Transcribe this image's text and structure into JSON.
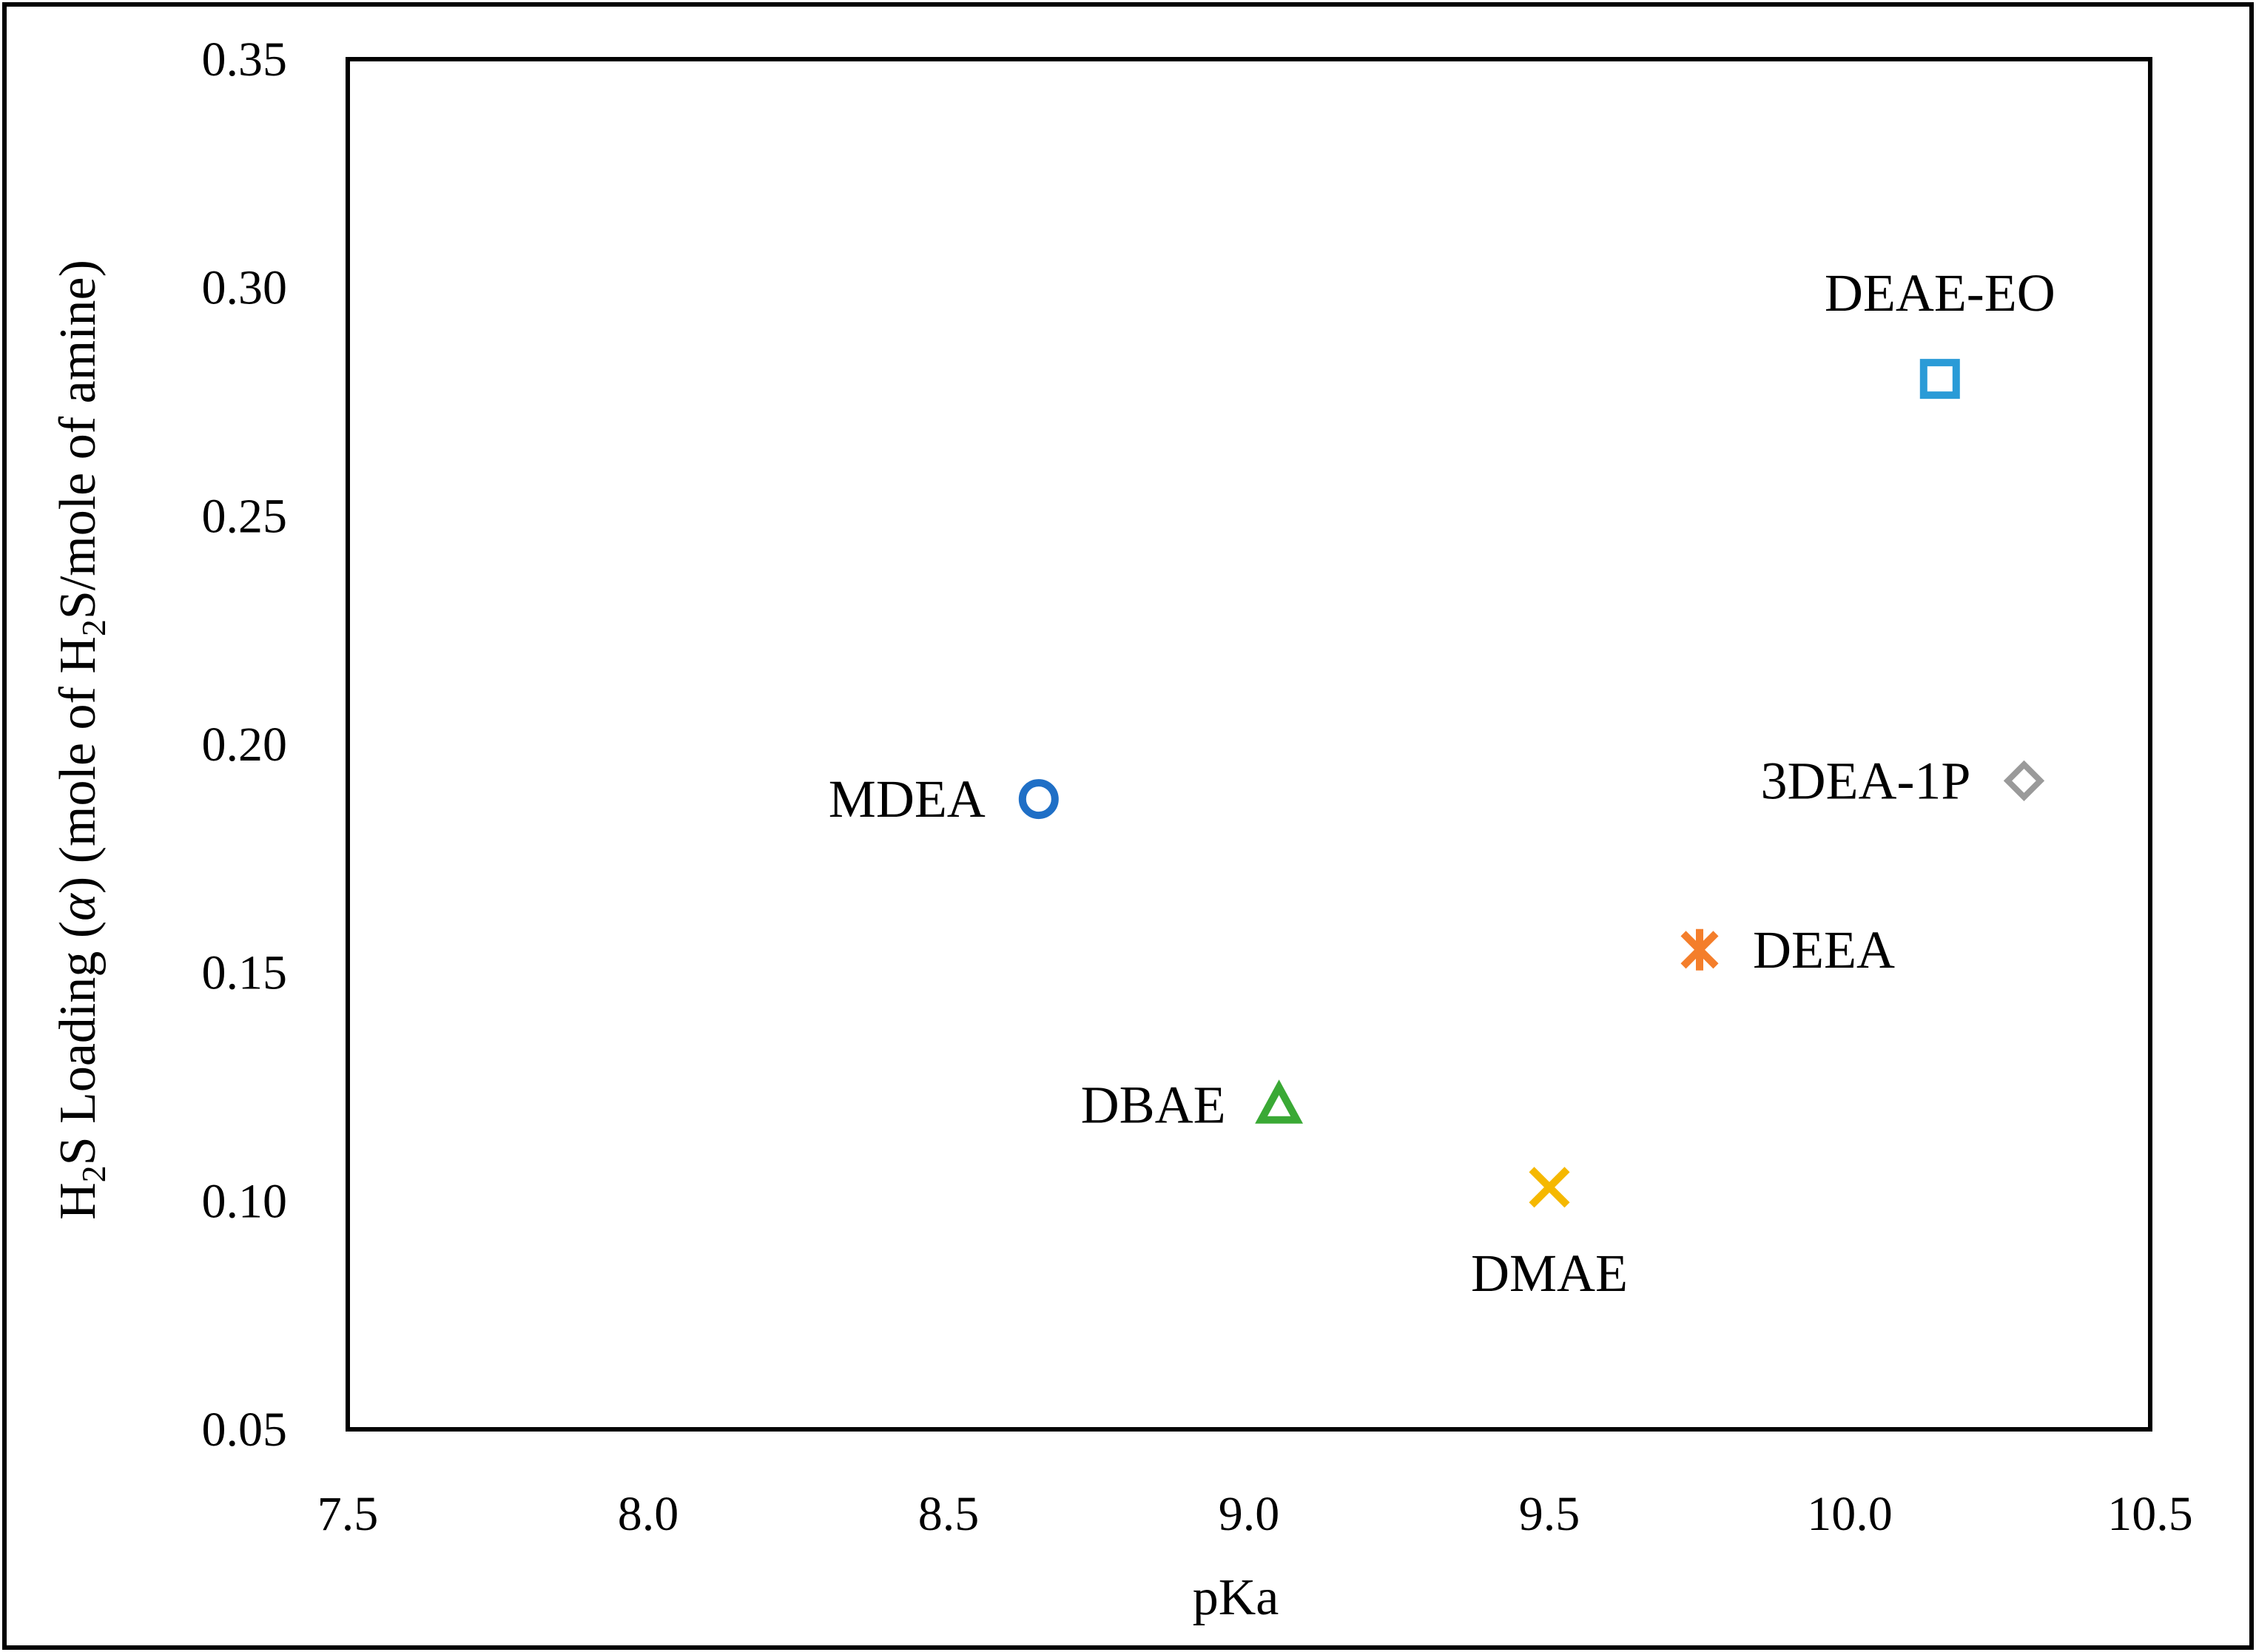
{
  "chart_data": {
    "type": "scatter",
    "xlabel": "pKa",
    "ylabel": {
      "prefix": "H",
      "sub": "2",
      "middle": "S Loading (",
      "alpha": "α",
      "middle2": ") (mole of H",
      "sub2": "2",
      "suffix": "S/mole of amine)"
    },
    "xlim": [
      7.5,
      10.5
    ],
    "ylim": [
      0.05,
      0.35
    ],
    "x_ticks": [
      "7.5",
      "8.0",
      "8.5",
      "9.0",
      "9.5",
      "10.0",
      "10.5"
    ],
    "y_ticks": [
      "0.05",
      "0.10",
      "0.15",
      "0.20",
      "0.25",
      "0.30",
      "0.35"
    ],
    "grid": false,
    "points": [
      {
        "name": "MDEA",
        "x": 8.65,
        "y": 0.188,
        "marker": "circle",
        "color": "#1f6fc6",
        "label_pos": "left"
      },
      {
        "name": "DBAE",
        "x": 9.05,
        "y": 0.121,
        "marker": "triangle",
        "color": "#3aa935",
        "label_pos": "left"
      },
      {
        "name": "DMAE",
        "x": 9.5,
        "y": 0.103,
        "marker": "x",
        "color": "#f5b800",
        "label_pos": "below"
      },
      {
        "name": "DEEA",
        "x": 9.75,
        "y": 0.155,
        "marker": "asterisk",
        "color": "#f47e2b",
        "label_pos": "right"
      },
      {
        "name": "DEAE-EO",
        "x": 10.15,
        "y": 0.28,
        "marker": "square",
        "color": "#2a9bd7",
        "label_pos": "above"
      },
      {
        "name": "3DEA-1P",
        "x": 10.29,
        "y": 0.192,
        "marker": "diamond",
        "color": "#9a9a9a",
        "label_pos": "left"
      }
    ]
  }
}
